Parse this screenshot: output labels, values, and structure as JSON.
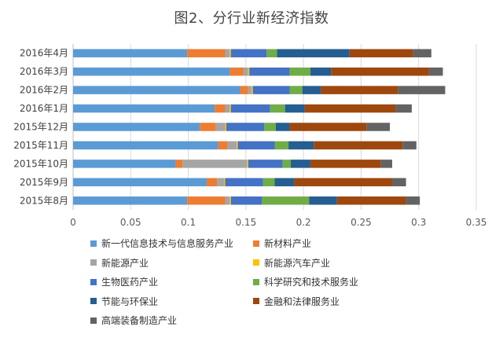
{
  "chart_data": {
    "type": "bar",
    "orientation": "horizontal",
    "stacked": true,
    "title": "图2、分行业新经济指数",
    "xlabel": "",
    "ylabel": "",
    "xlim": [
      0,
      0.35
    ],
    "xticks": [
      "0",
      "0.05",
      "0.1",
      "0.15",
      "0.2",
      "0.25",
      "0.3",
      "0.35"
    ],
    "xtick_values": [
      0,
      0.05,
      0.1,
      0.15,
      0.2,
      0.25,
      0.3,
      0.35
    ],
    "grid": true,
    "legend_position": "bottom",
    "categories": [
      "2016年4月",
      "2016年3月",
      "2016年2月",
      "2016年1月",
      "2015年12月",
      "2015年11月",
      "2015年10月",
      "2015年9月",
      "2015年8月"
    ],
    "series": [
      {
        "name": "新一代信息技术与信息服务产业",
        "color": "#5B9BD5",
        "values": [
          0.099,
          0.136,
          0.145,
          0.123,
          0.11,
          0.126,
          0.089,
          0.116,
          0.099
        ]
      },
      {
        "name": "新材料产业",
        "color": "#ED7D31",
        "values": [
          0.033,
          0.012,
          0.007,
          0.009,
          0.014,
          0.008,
          0.006,
          0.009,
          0.033
        ]
      },
      {
        "name": "新能源产业",
        "color": "#A5A5A5",
        "values": [
          0.004,
          0.004,
          0.003,
          0.004,
          0.008,
          0.008,
          0.056,
          0.006,
          0.004
        ]
      },
      {
        "name": "新能源汽车产业",
        "color": "#FFC000",
        "values": [
          0.001,
          0.001,
          0.001,
          0.001,
          0.001,
          0.001,
          0.001,
          0.001,
          0.001
        ]
      },
      {
        "name": "生物医药产业",
        "color": "#4472C4",
        "values": [
          0.031,
          0.035,
          0.032,
          0.034,
          0.033,
          0.032,
          0.03,
          0.033,
          0.027
        ]
      },
      {
        "name": "科学研究和技术服务业",
        "color": "#70AD47",
        "values": [
          0.009,
          0.018,
          0.011,
          0.013,
          0.01,
          0.012,
          0.007,
          0.01,
          0.041
        ]
      },
      {
        "name": "节能与环保业",
        "color": "#255E91",
        "values": [
          0.063,
          0.018,
          0.016,
          0.017,
          0.012,
          0.022,
          0.017,
          0.017,
          0.024
        ]
      },
      {
        "name": "金融和法律服务业",
        "color": "#9E480E",
        "values": [
          0.055,
          0.085,
          0.067,
          0.079,
          0.067,
          0.077,
          0.061,
          0.085,
          0.06
        ]
      },
      {
        "name": "高端装备制造产业",
        "color": "#636363",
        "values": [
          0.016,
          0.012,
          0.041,
          0.014,
          0.02,
          0.012,
          0.01,
          0.012,
          0.012
        ]
      }
    ]
  }
}
